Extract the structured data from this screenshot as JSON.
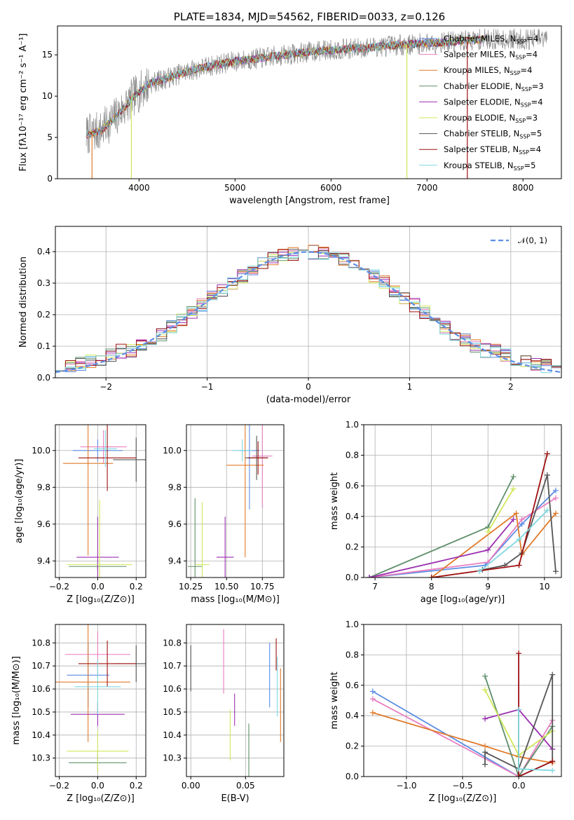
{
  "colors": {
    "Chabrier MILES": "#5b8ee6",
    "Salpeter MILES": "#e87fc0",
    "Kroupa MILES": "#e07a2a",
    "Chabrier ELODIE": "#5e8f6a",
    "Salpeter ELODIE": "#9b2fb0",
    "Kroupa ELODIE": "#cfe85a",
    "Chabrier STELIB": "#555555",
    "Salpeter STELIB": "#a01010",
    "Kroupa STELIB": "#7fd8e0"
  },
  "chart_data": [
    {
      "id": "spectrum",
      "type": "line",
      "title": "PLATE=1834, MJD=54562, FIBERID=0033, z=0.126",
      "xlabel": "wavelength [Angstrom, rest frame]",
      "ylabel": "Flux [fλ10⁻¹⁷ erg cm⁻² s⁻¹ A⁻¹]",
      "xlim": [
        3150,
        8400
      ],
      "ylim": [
        0,
        18.5
      ],
      "xticks": [
        "4000",
        "5000",
        "6000",
        "7000",
        "8000"
      ],
      "yticks": [
        "0",
        "5",
        "10",
        "15"
      ],
      "legend_position": "top-right",
      "legend": [
        {
          "name": "Chabrier MILES",
          "label": "Chabrier MILES, N",
          "sub": "SSP",
          "suffix": "=4"
        },
        {
          "name": "Salpeter MILES",
          "label": "Salpeter MILES, N",
          "sub": "SSP",
          "suffix": "=4"
        },
        {
          "name": "Kroupa MILES",
          "label": "Kroupa MILES, N",
          "sub": "SSP",
          "suffix": "=4"
        },
        {
          "name": "Chabrier ELODIE",
          "label": "Chabrier ELODIE, N",
          "sub": "SSP",
          "suffix": "=3"
        },
        {
          "name": "Salpeter ELODIE",
          "label": "Salpeter ELODIE, N",
          "sub": "SSP",
          "suffix": "=4"
        },
        {
          "name": "Kroupa ELODIE",
          "label": "Kroupa ELODIE, N",
          "sub": "SSP",
          "suffix": "=3"
        },
        {
          "name": "Chabrier STELIB",
          "label": "Chabrier STELIB, N",
          "sub": "SSP",
          "suffix": "=5"
        },
        {
          "name": "Salpeter STELIB",
          "label": "Salpeter STELIB, N",
          "sub": "SSP",
          "suffix": "=4"
        },
        {
          "name": "Kroupa STELIB",
          "label": "Kroupa STELIB, N",
          "sub": "SSP",
          "suffix": "=5"
        }
      ],
      "trend": [
        [
          3450,
          5.3
        ],
        [
          3600,
          5.8
        ],
        [
          3800,
          8.0
        ],
        [
          3950,
          10.0
        ],
        [
          4100,
          11.5
        ],
        [
          4300,
          12.2
        ],
        [
          4500,
          13.0
        ],
        [
          4800,
          13.8
        ],
        [
          5000,
          14.2
        ],
        [
          5400,
          14.8
        ],
        [
          5800,
          15.4
        ],
        [
          6000,
          15.6
        ],
        [
          6300,
          15.8
        ],
        [
          6600,
          16.1
        ],
        [
          7000,
          16.4
        ],
        [
          7300,
          16.6
        ],
        [
          7600,
          16.9
        ]
      ],
      "model_end": 7600,
      "data_end": 8250,
      "spikes": [
        {
          "x": 3510,
          "y": 0,
          "color": "#e07a2a"
        },
        {
          "x": 3920,
          "y": 0,
          "color": "#cfe85a"
        },
        {
          "x": 6790,
          "y": 0,
          "color": "#cfe85a"
        },
        {
          "x": 7420,
          "y": 0,
          "color": "#a01010"
        }
      ]
    },
    {
      "id": "residuals",
      "type": "step",
      "xlabel": "(data-model)/error",
      "ylabel": "Normed distribution",
      "xlim": [
        -2.5,
        2.5
      ],
      "ylim": [
        0,
        0.48
      ],
      "xticks": [
        "−2",
        "−1",
        "0",
        "1",
        "2"
      ],
      "xtick_values": [
        -2,
        -1,
        0,
        1,
        2
      ],
      "yticks": [
        "0.0",
        "0.1",
        "0.2",
        "0.3",
        "0.4"
      ],
      "ytick_values": [
        0,
        0.1,
        0.2,
        0.3,
        0.4
      ],
      "legend": "𝒩(0, 1)",
      "legend_position": "top-right",
      "bin_width": 0.1,
      "gaussian_color": "#5b8ee6"
    },
    {
      "id": "age-vs-Z",
      "type": "scatter",
      "xlabel": "Z [log₁₀(Z/Z⊙)]",
      "ylabel": "age  [log₁₀(age/yr)]",
      "xlim": [
        -0.22,
        0.25
      ],
      "ylim": [
        9.31,
        10.14
      ],
      "xticks": [
        "−0.2",
        "0.0",
        "0.2"
      ],
      "xtick_values": [
        -0.2,
        0,
        0.2
      ],
      "yticks": [
        "9.4",
        "9.6",
        "9.8",
        "10.0"
      ],
      "ytick_values": [
        9.4,
        9.6,
        9.8,
        10.0
      ],
      "points": [
        {
          "name": "Chabrier MILES",
          "x": 0.0,
          "xerr": 0.13,
          "y": 10.0,
          "yerr": 0.06
        },
        {
          "name": "Salpeter MILES",
          "x": 0.03,
          "xerr": 0.12,
          "y": 10.02,
          "yerr": 0.09
        },
        {
          "name": "Kroupa MILES",
          "x": -0.05,
          "xerr": 0.13,
          "y": 9.93,
          "yerr": 0.5
        },
        {
          "name": "Chabrier ELODIE",
          "x": 0.0,
          "xerr": 0.15,
          "y": 9.37,
          "yerr": 0.02
        },
        {
          "name": "Salpeter ELODIE",
          "x": 0.0,
          "xerr": 0.11,
          "y": 9.42,
          "yerr": 0.22
        },
        {
          "name": "Kroupa ELODIE",
          "x": 0.01,
          "xerr": 0.17,
          "y": 9.38,
          "yerr": 0.35
        },
        {
          "name": "Chabrier STELIB",
          "x": 0.2,
          "xerr": 0.12,
          "y": 9.95,
          "yerr": 0.12
        },
        {
          "name": "Salpeter STELIB",
          "x": 0.05,
          "xerr": 0.15,
          "y": 9.96,
          "yerr": 0.18
        },
        {
          "name": "Kroupa STELIB",
          "x": 0.04,
          "xerr": 0.06,
          "y": 10.01,
          "yerr": 0.1
        }
      ]
    },
    {
      "id": "age-vs-mass",
      "type": "scatter",
      "xlabel": "mass [log₁₀(M/M⊙)]",
      "xlim": [
        10.22,
        10.9
      ],
      "ylim": [
        9.31,
        10.14
      ],
      "xticks": [
        "10.25",
        "10.50",
        "10.75"
      ],
      "xtick_values": [
        10.25,
        10.5,
        10.75
      ],
      "yticks": [
        "9.4",
        "9.6",
        "9.8",
        "10.0"
      ],
      "ytick_values": [
        9.4,
        9.6,
        9.8,
        10.0
      ],
      "points": [
        {
          "name": "Chabrier MILES",
          "x": 10.66,
          "xerr": 0.07,
          "y": 10.0,
          "yerr": 0.32
        },
        {
          "name": "Salpeter MILES",
          "x": 10.75,
          "xerr": 0.07,
          "y": 9.97,
          "yerr": 0.28
        },
        {
          "name": "Kroupa MILES",
          "x": 10.63,
          "xerr": 0.13,
          "y": 9.92,
          "yerr": 0.5
        },
        {
          "name": "Chabrier ELODIE",
          "x": 10.28,
          "xerr": 0.05,
          "y": 9.37,
          "yerr": 0.37
        },
        {
          "name": "Salpeter ELODIE",
          "x": 10.49,
          "xerr": 0.06,
          "y": 9.42,
          "yerr": 0.22
        },
        {
          "name": "Kroupa ELODIE",
          "x": 10.33,
          "xerr": 0.05,
          "y": 9.38,
          "yerr": 0.34
        },
        {
          "name": "Chabrier STELIB",
          "x": 10.71,
          "xerr": 0.08,
          "y": 9.96,
          "yerr": 0.12
        },
        {
          "name": "Salpeter STELIB",
          "x": 10.72,
          "xerr": 0.07,
          "y": 9.96,
          "yerr": 0.09
        },
        {
          "name": "Kroupa STELIB",
          "x": 10.61,
          "xerr": 0.07,
          "y": 10.0,
          "yerr": 0.06
        }
      ]
    },
    {
      "id": "weight-vs-age",
      "type": "line",
      "xlabel": "age  [log₁₀(age/yr)]",
      "ylabel": "mass weight",
      "xlim": [
        6.8,
        10.3
      ],
      "ylim": [
        0,
        1
      ],
      "xticks": [
        "7",
        "8",
        "9",
        "10"
      ],
      "xtick_values": [
        7,
        8,
        9,
        10
      ],
      "yticks": [
        "0.0",
        "0.2",
        "0.4",
        "0.6",
        "0.8",
        "1.0"
      ],
      "ytick_values": [
        0,
        0.2,
        0.4,
        0.6,
        0.8,
        1.0
      ],
      "series": [
        {
          "name": "Chabrier MILES",
          "x": [
            6.9,
            8.95,
            9.6,
            10.2
          ],
          "y": [
            0,
            0.08,
            0.35,
            0.57
          ]
        },
        {
          "name": "Salpeter MILES",
          "x": [
            6.9,
            9.0,
            9.6,
            10.2
          ],
          "y": [
            0,
            0.1,
            0.38,
            0.52
          ]
        },
        {
          "name": "Kroupa MILES",
          "x": [
            8.0,
            9.5,
            9.6,
            10.2
          ],
          "y": [
            0,
            0.42,
            0.15,
            0.42
          ]
        },
        {
          "name": "Chabrier ELODIE",
          "x": [
            6.9,
            9.0,
            9.45
          ],
          "y": [
            0,
            0.33,
            0.66
          ]
        },
        {
          "name": "Salpeter ELODIE",
          "x": [
            6.9,
            9.0,
            9.45
          ],
          "y": [
            0,
            0.18,
            0.38
          ]
        },
        {
          "name": "Kroupa ELODIE",
          "x": [
            9.0,
            9.45
          ],
          "y": [
            0.3,
            0.58
          ]
        },
        {
          "name": "Chabrier STELIB",
          "x": [
            8.9,
            9.3,
            9.6,
            10.05,
            10.2
          ],
          "y": [
            0.05,
            0.08,
            0.16,
            0.67,
            0.04
          ]
        },
        {
          "name": "Salpeter STELIB",
          "x": [
            8.0,
            9.55,
            10.05
          ],
          "y": [
            0,
            0.08,
            0.81
          ]
        },
        {
          "name": "Kroupa STELIB",
          "x": [
            8.85,
            9.55,
            10.05
          ],
          "y": [
            0.04,
            0.25,
            0.44
          ]
        }
      ]
    },
    {
      "id": "mass-vs-Z",
      "type": "scatter",
      "xlabel": "Z [log₁₀(Z/Z⊙)]",
      "ylabel": "mass [log₁₀(M/M⊙)]",
      "xlim": [
        -0.22,
        0.25
      ],
      "ylim": [
        10.22,
        10.88
      ],
      "xticks": [
        "−0.2",
        "0.0",
        "0.2"
      ],
      "xtick_values": [
        -0.2,
        0,
        0.2
      ],
      "yticks": [
        "10.3",
        "10.4",
        "10.5",
        "10.6",
        "10.7",
        "10.8"
      ],
      "ytick_values": [
        10.3,
        10.4,
        10.5,
        10.6,
        10.7,
        10.8
      ],
      "points": [
        {
          "name": "Chabrier MILES",
          "x": -0.05,
          "xerr": 0.11,
          "y": 10.66,
          "yerr": 0.14
        },
        {
          "name": "Salpeter MILES",
          "x": 0.0,
          "xerr": 0.17,
          "y": 10.75,
          "yerr": 0.1
        },
        {
          "name": "Kroupa MILES",
          "x": -0.05,
          "xerr": 0.22,
          "y": 10.63,
          "yerr": 0.26
        },
        {
          "name": "Chabrier ELODIE",
          "x": 0.0,
          "xerr": 0.15,
          "y": 10.28,
          "yerr": 0.04
        },
        {
          "name": "Salpeter ELODIE",
          "x": 0.0,
          "xerr": 0.14,
          "y": 10.49,
          "yerr": 0.05
        },
        {
          "name": "Kroupa ELODIE",
          "x": 0.0,
          "xerr": 0.16,
          "y": 10.33,
          "yerr": 0.09
        },
        {
          "name": "Chabrier STELIB",
          "x": 0.2,
          "xerr": 0.12,
          "y": 10.71,
          "yerr": 0.08
        },
        {
          "name": "Salpeter STELIB",
          "x": 0.05,
          "xerr": 0.15,
          "y": 10.71,
          "yerr": 0.1
        },
        {
          "name": "Kroupa STELIB",
          "x": 0.0,
          "xerr": 0.12,
          "y": 10.61,
          "yerr": 0.12
        }
      ]
    },
    {
      "id": "mass-vs-EBV",
      "type": "scatter",
      "xlabel": "E(B-V)",
      "xlim": [
        -0.004,
        0.085
      ],
      "ylim": [
        10.22,
        10.88
      ],
      "xticks": [
        "0.00",
        "0.05"
      ],
      "xtick_values": [
        0,
        0.05
      ],
      "yticks": [
        "10.3",
        "10.4",
        "10.5",
        "10.6",
        "10.7",
        "10.8"
      ],
      "ytick_values": [
        10.3,
        10.4,
        10.5,
        10.6,
        10.7,
        10.8
      ],
      "points": [
        {
          "name": "Chabrier MILES",
          "x": 0.072,
          "xerr": 0,
          "y": 10.66,
          "yerr": 0.14
        },
        {
          "name": "Salpeter MILES",
          "x": 0.03,
          "xerr": 0,
          "y": 10.72,
          "yerr": 0.14
        },
        {
          "name": "Kroupa MILES",
          "x": 0.082,
          "xerr": 0,
          "y": 10.53,
          "yerr": 0.16
        },
        {
          "name": "Chabrier ELODIE",
          "x": 0.053,
          "xerr": 0,
          "y": 10.32,
          "yerr": 0.13
        },
        {
          "name": "Salpeter ELODIE",
          "x": 0.04,
          "xerr": 0,
          "y": 10.51,
          "yerr": 0.07
        },
        {
          "name": "Kroupa ELODIE",
          "x": 0.036,
          "xerr": 0,
          "y": 10.4,
          "yerr": 0.11
        },
        {
          "name": "Chabrier STELIB",
          "x": 0.0,
          "xerr": 0,
          "y": 10.69,
          "yerr": 0.1
        },
        {
          "name": "Salpeter STELIB",
          "x": 0.078,
          "xerr": 0,
          "y": 10.75,
          "yerr": 0.07
        },
        {
          "name": "Kroupa STELIB",
          "x": 0.079,
          "xerr": 0,
          "y": 10.61,
          "yerr": 0.13
        }
      ]
    },
    {
      "id": "weight-vs-Z",
      "type": "line",
      "xlabel": "Z [log₁₀(Z/Z⊙)]",
      "ylabel": "mass weight",
      "xlim": [
        -1.38,
        0.38
      ],
      "ylim": [
        0,
        1
      ],
      "xticks": [
        "−1.0",
        "−0.5",
        "0.0"
      ],
      "xtick_values": [
        -1.0,
        -0.5,
        0.0
      ],
      "yticks": [
        "0.0",
        "0.2",
        "0.4",
        "0.6",
        "0.8",
        "1.0"
      ],
      "ytick_values": [
        0,
        0.2,
        0.4,
        0.6,
        0.8,
        1.0
      ],
      "series": [
        {
          "name": "Chabrier MILES",
          "x": [
            -1.3,
            0.0,
            0.3
          ],
          "y": [
            0.56,
            0.0,
            0.1
          ]
        },
        {
          "name": "Salpeter MILES",
          "x": [
            -1.3,
            0.0,
            0.3
          ],
          "y": [
            0.51,
            0.0,
            0.37
          ]
        },
        {
          "name": "Kroupa MILES",
          "x": [
            -1.3,
            -0.3,
            0.0,
            0.3
          ],
          "y": [
            0.42,
            0.2,
            0.13,
            0.09
          ]
        },
        {
          "name": "Chabrier ELODIE",
          "x": [
            -0.3,
            0.0,
            0.3
          ],
          "y": [
            0.66,
            0.0,
            0.33
          ]
        },
        {
          "name": "Salpeter ELODIE",
          "x": [
            -0.3,
            0.0,
            0.3
          ],
          "y": [
            0.38,
            0.44,
            0.18
          ]
        },
        {
          "name": "Kroupa ELODIE",
          "x": [
            -0.3,
            0.0,
            0.3
          ],
          "y": [
            0.57,
            0.14,
            0.3
          ]
        },
        {
          "name": "Chabrier STELIB",
          "x": [
            -0.3,
            -0.3,
            0.0,
            0.3,
            0.3
          ],
          "y": [
            0.08,
            0.16,
            0.05,
            0.67,
            0.1
          ]
        },
        {
          "name": "Salpeter STELIB",
          "x": [
            0.0,
            0.0,
            0.3
          ],
          "y": [
            0.81,
            0.0,
            0.1
          ]
        },
        {
          "name": "Kroupa STELIB",
          "x": [
            0.0,
            0.0,
            0.3
          ],
          "y": [
            0.44,
            0.05,
            0.04
          ]
        }
      ]
    }
  ]
}
